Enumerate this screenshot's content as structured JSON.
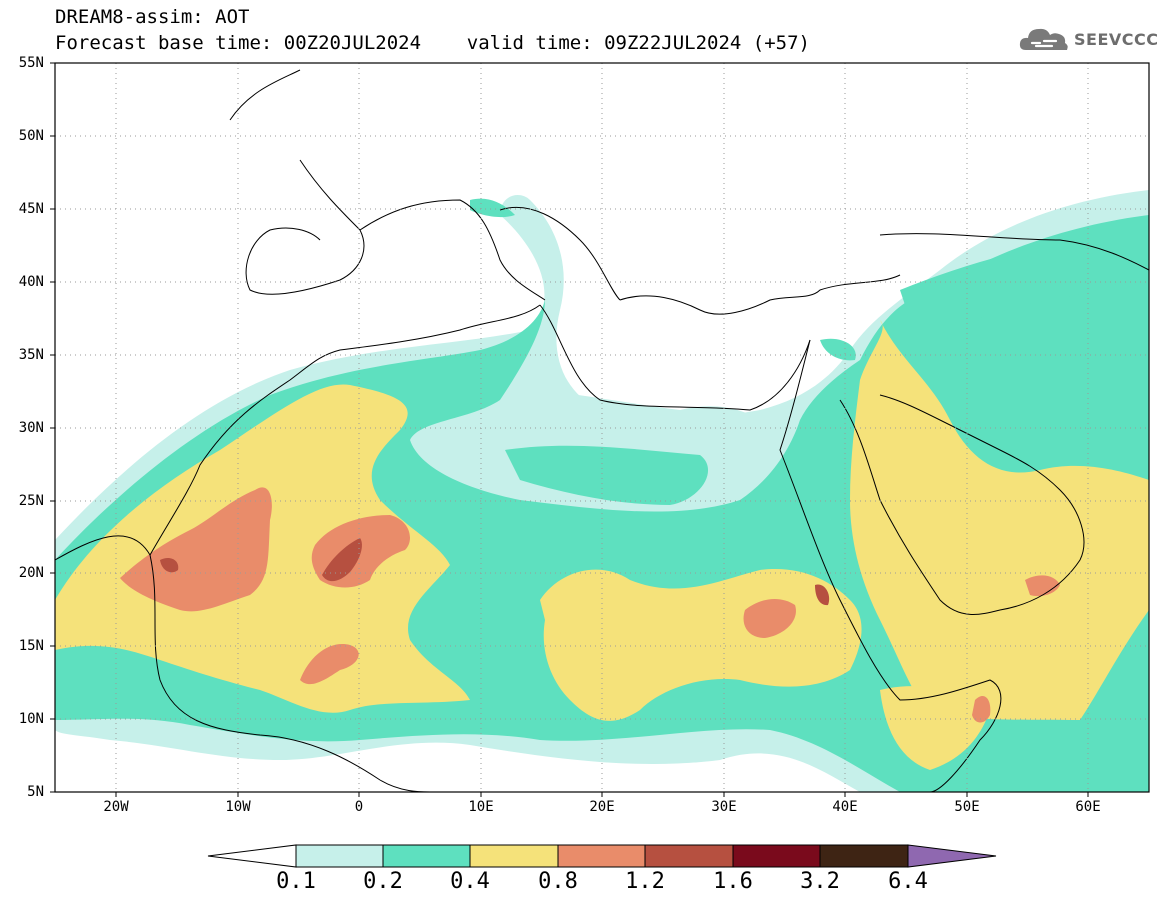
{
  "header": {
    "title_line_1": "DREAM8-assim: AOT",
    "title_line_2": "Forecast base time: 00Z20JUL2024    valid time: 09Z22JUL2024 (+57)"
  },
  "logo": {
    "text": "SEEVCCC",
    "icon": "cloud-icon"
  },
  "map": {
    "lat_labels": [
      "55N",
      "50N",
      "45N",
      "40N",
      "35N",
      "30N",
      "25N",
      "20N",
      "15N",
      "10N",
      "5N"
    ],
    "lon_labels": [
      "20W",
      "10W",
      "0",
      "10E",
      "20E",
      "30E",
      "40E",
      "50E",
      "60E"
    ],
    "lat_range": [
      5,
      55
    ],
    "lon_range": [
      -25,
      65
    ],
    "grid": "dotted"
  },
  "colorbar": {
    "levels": [
      "0.1",
      "0.2",
      "0.4",
      "0.8",
      "1.2",
      "1.6",
      "3.2",
      "6.4"
    ],
    "colors": [
      "#c6f0ea",
      "#5ee0bf",
      "#f5e27a",
      "#e98c6a",
      "#b65040",
      "#7a0a1c",
      "#3e2414",
      "#8f68b0"
    ],
    "low_color": "#ffffff"
  }
}
